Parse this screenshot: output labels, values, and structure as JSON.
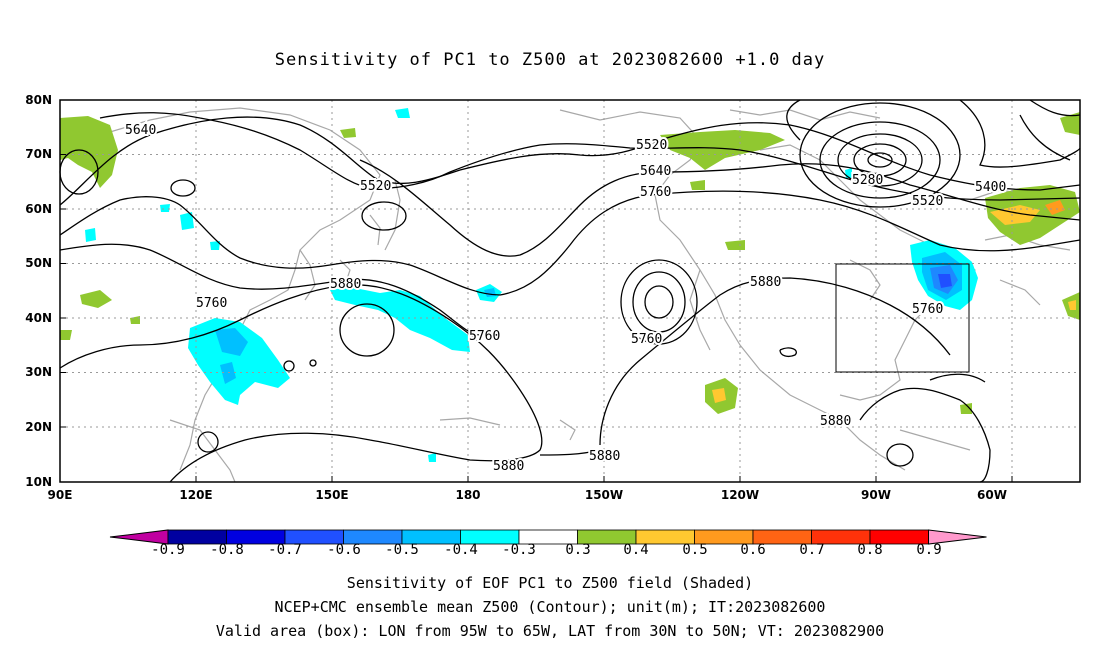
{
  "title": "Sensitivity of PC1 to Z500 at 2023082600 +1.0 day",
  "lat_labels": [
    "80N",
    "70N",
    "60N",
    "50N",
    "40N",
    "30N",
    "20N",
    "10N"
  ],
  "lon_labels": [
    "90E",
    "120E",
    "150E",
    "180",
    "150W",
    "120W",
    "90W",
    "60W"
  ],
  "contour_labels": [
    "5640",
    "5520",
    "5520",
    "5640",
    "5760",
    "5280",
    "5400",
    "5520",
    "5760",
    "5880",
    "5760",
    "5760",
    "5880",
    "5760",
    "5880",
    "5880",
    "5880"
  ],
  "colorbar_labels": [
    "-0.9",
    "-0.8",
    "-0.7",
    "-0.6",
    "-0.5",
    "-0.4",
    "-0.3",
    "0.3",
    "0.4",
    "0.5",
    "0.6",
    "0.7",
    "0.8",
    "0.9"
  ],
  "colorbar_colors": [
    "#c000a0",
    "#0000a0",
    "#0000e0",
    "#2050ff",
    "#1e88ff",
    "#00c0ff",
    "#00ffff",
    "#ffffff",
    "#90c830",
    "#ffc830",
    "#ff9a1e",
    "#ff6414",
    "#ff320a",
    "#ff0000",
    "#ff99cc"
  ],
  "captions": [
    "Sensitivity of EOF PC1 to Z500 field (Shaded)",
    "NCEP+CMC ensemble mean Z500 (Contour); unit(m); IT:2023082600",
    "Valid area (box): LON from 95W to 65W, LAT from 30N to 50N; VT: 2023082900"
  ]
}
